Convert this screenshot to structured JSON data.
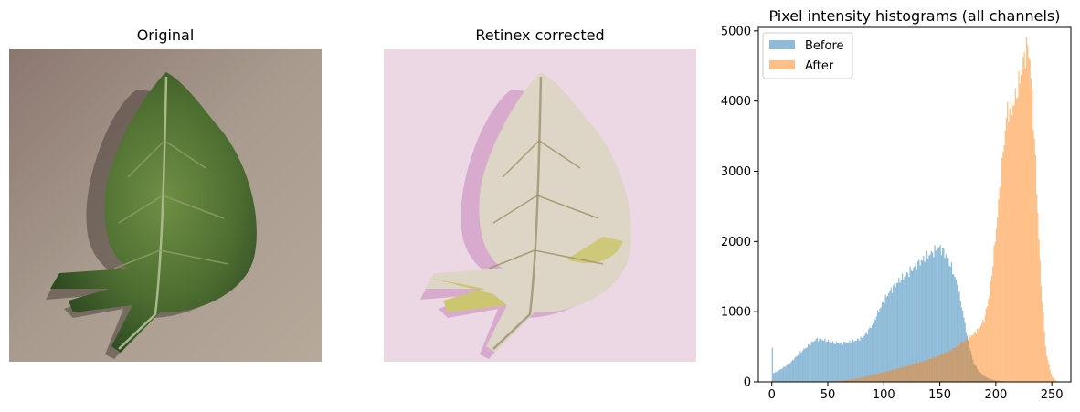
{
  "panels": {
    "original": {
      "title": "Original"
    },
    "corrected": {
      "title": "Retinex corrected"
    }
  },
  "colors": {
    "before": "#1f77b4",
    "after": "#ff7f0e",
    "sand_original": "#a99c8f",
    "leaf_original": "#4d6e31",
    "sand_corrected": "#ead5e2",
    "leaf_corrected": "#ddd6c6"
  },
  "chart_data": {
    "type": "histogram",
    "title": "Pixel intensity histograms (all channels)",
    "xlabel": "",
    "ylabel": "",
    "xlim": [
      -12,
      267
    ],
    "ylim": [
      0,
      5050
    ],
    "x_ticks": [
      0,
      50,
      100,
      150,
      200,
      250
    ],
    "y_ticks": [
      0,
      1000,
      2000,
      3000,
      4000,
      5000
    ],
    "grid": false,
    "legend_location": "upper-left",
    "bin_width": 1,
    "series": [
      {
        "name": "Before",
        "alpha": 0.5,
        "profile_x": [
          0,
          1,
          2,
          5,
          10,
          15,
          20,
          25,
          30,
          35,
          40,
          45,
          50,
          55,
          60,
          65,
          70,
          75,
          80,
          85,
          90,
          95,
          100,
          105,
          110,
          115,
          120,
          125,
          130,
          135,
          140,
          145,
          150,
          155,
          160,
          165,
          170,
          175,
          180,
          185,
          190,
          195,
          200,
          205,
          210,
          215,
          220,
          225,
          230,
          235,
          240,
          245,
          250,
          255
        ],
        "profile_y": [
          850,
          120,
          130,
          150,
          200,
          250,
          330,
          410,
          480,
          550,
          610,
          600,
          580,
          560,
          550,
          560,
          570,
          590,
          620,
          700,
          820,
          1000,
          1150,
          1280,
          1380,
          1460,
          1520,
          1600,
          1680,
          1740,
          1800,
          1860,
          1920,
          1820,
          1650,
          1420,
          1050,
          600,
          280,
          150,
          80,
          40,
          20,
          10,
          5,
          3,
          2,
          0,
          0,
          0,
          0,
          0,
          0,
          0
        ]
      },
      {
        "name": "After",
        "alpha": 0.5,
        "profile_x": [
          0,
          1,
          5,
          20,
          40,
          60,
          70,
          80,
          90,
          100,
          110,
          120,
          130,
          140,
          150,
          160,
          170,
          180,
          185,
          190,
          195,
          200,
          205,
          210,
          215,
          220,
          225,
          228,
          230,
          232,
          235,
          240,
          245,
          250,
          253,
          255
        ],
        "profile_y": [
          60,
          0,
          0,
          0,
          5,
          15,
          30,
          60,
          100,
          140,
          180,
          220,
          270,
          320,
          380,
          450,
          560,
          680,
          760,
          900,
          1300,
          2100,
          3000,
          3850,
          3900,
          4200,
          4600,
          4780,
          4700,
          4200,
          3300,
          1500,
          400,
          80,
          30,
          0
        ]
      }
    ]
  }
}
